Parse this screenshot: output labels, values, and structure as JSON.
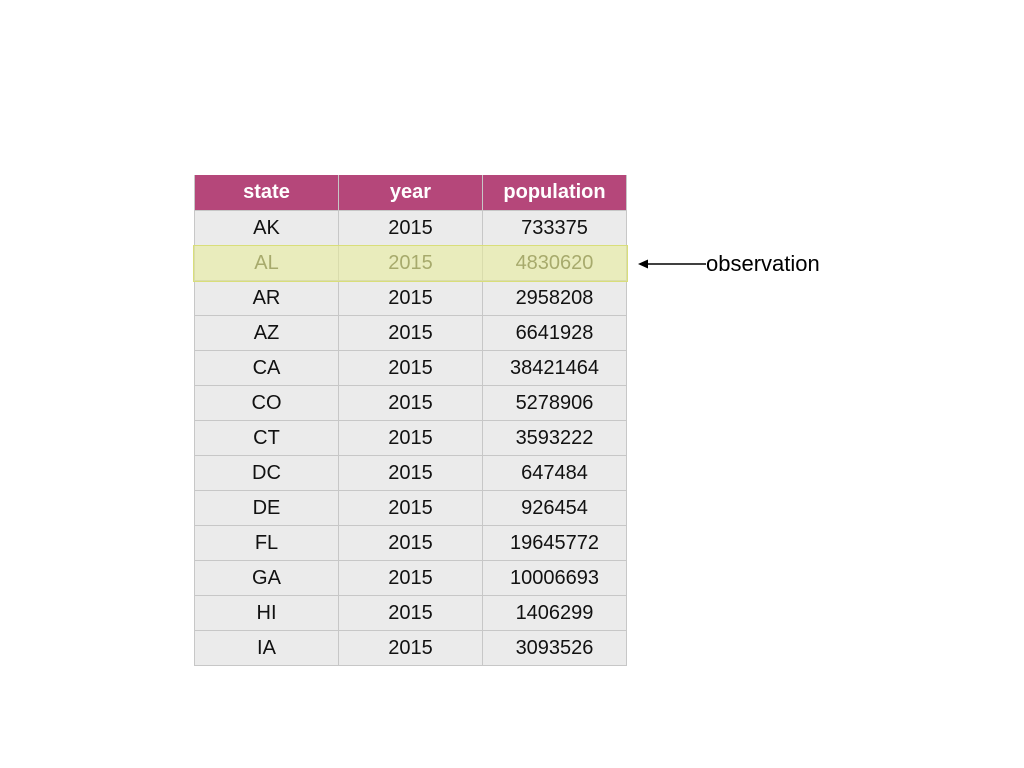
{
  "table": {
    "headers": [
      "state",
      "year",
      "population"
    ],
    "rows": [
      [
        "AK",
        "2015",
        "733375"
      ],
      [
        "AL",
        "2015",
        "4830620"
      ],
      [
        "AR",
        "2015",
        "2958208"
      ],
      [
        "AZ",
        "2015",
        "6641928"
      ],
      [
        "CA",
        "2015",
        "38421464"
      ],
      [
        "CO",
        "2015",
        "5278906"
      ],
      [
        "CT",
        "2015",
        "3593222"
      ],
      [
        "DC",
        "2015",
        "647484"
      ],
      [
        "DE",
        "2015",
        "926454"
      ],
      [
        "FL",
        "2015",
        "19645772"
      ],
      [
        "GA",
        "2015",
        "10006693"
      ],
      [
        "HI",
        "2015",
        "1406299"
      ],
      [
        "IA",
        "2015",
        "3093526"
      ]
    ],
    "highlighted_row": 1
  },
  "annotation": {
    "label": "observation"
  },
  "colors": {
    "header_background": "#b5477a",
    "cell_background": "#ebebeb",
    "highlight": "#e8ec96",
    "highlight_text": "#5a5a3a"
  }
}
